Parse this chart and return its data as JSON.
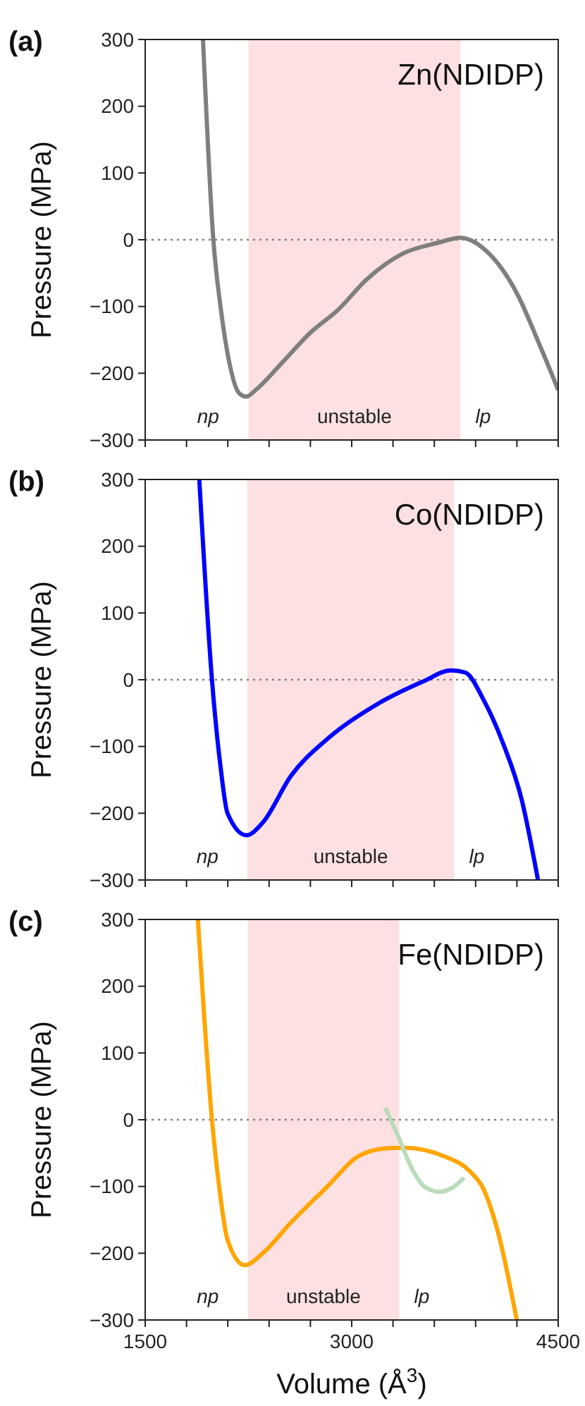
{
  "chart_data": [
    {
      "type": "line",
      "title": "(a)",
      "subtitle": "Zn(NDIDP)",
      "ylabel": "Pressure (MPa)",
      "xlim": [
        1500,
        4500
      ],
      "ylim": [
        -300,
        300
      ],
      "xticks": [
        1500,
        {
          "value": 1800,
          "label": null
        },
        {
          "value": 2100,
          "label": null
        },
        {
          "value": 2400,
          "label": null
        },
        {
          "value": 2700,
          "label": null
        },
        3000,
        {
          "value": 3300,
          "label": null
        },
        {
          "value": 3600,
          "label": null
        },
        {
          "value": 3900,
          "label": null
        },
        {
          "value": 4200,
          "label": null
        },
        4500
      ],
      "yticks": [
        -300,
        -200,
        -100,
        0,
        100,
        200,
        300
      ],
      "tick_labels": "y",
      "series": [
        {
          "color": "#7f7f7f",
          "x": [
            1920,
            1995,
            2047,
            2098,
            2183,
            2235,
            2303,
            2491,
            2696,
            2901,
            3106,
            3379,
            3618,
            3789,
            3994,
            4199,
            4370,
            4500
          ],
          "values": [
            300,
            0,
            -100,
            -170,
            -230,
            -235,
            -225,
            -185,
            -140,
            -105,
            -60,
            -20,
            -5,
            3,
            -20,
            -80,
            -160,
            -225
          ]
        }
      ],
      "bands": [
        {
          "axis": "x",
          "from": 2250,
          "to": 3790,
          "label": "unstable",
          "color": "#fde0e2"
        }
      ],
      "ref_lines": [
        {
          "axis": "y",
          "value": 0,
          "color": "#808080",
          "line_style": "dotted"
        }
      ],
      "annotations": [
        "np",
        "lp"
      ]
    },
    {
      "type": "line",
      "title": "(b)",
      "subtitle": "Co(NDIDP)",
      "ylabel": "Pressure (MPa)",
      "xlim": [
        1500,
        4500
      ],
      "ylim": [
        -300,
        300
      ],
      "xticks": [
        1500,
        {
          "value": 1800,
          "label": null
        },
        {
          "value": 2100,
          "label": null
        },
        {
          "value": 2400,
          "label": null
        },
        {
          "value": 2700,
          "label": null
        },
        3000,
        {
          "value": 3300,
          "label": null
        },
        {
          "value": 3600,
          "label": null
        },
        {
          "value": 3900,
          "label": null
        },
        {
          "value": 4200,
          "label": null
        },
        4500
      ],
      "yticks": [
        -300,
        -200,
        -100,
        0,
        100,
        200,
        300
      ],
      "tick_labels": "y",
      "series": [
        {
          "color": "#0000ff",
          "x": [
            1893,
            1985,
            2047,
            2098,
            2235,
            2354,
            2559,
            2833,
            3174,
            3515,
            3721,
            3823,
            3960,
            4097,
            4234,
            4353
          ],
          "values": [
            300,
            0,
            -130,
            -200,
            -233,
            -214,
            -144,
            -87,
            -38,
            -3,
            14,
            11,
            -31,
            -94,
            -179,
            -300
          ]
        }
      ],
      "bands": [
        {
          "axis": "x",
          "from": 2241,
          "to": 3745,
          "label": "unstable",
          "color": "#fde0e2"
        }
      ],
      "ref_lines": [
        {
          "axis": "y",
          "value": 0,
          "color": "#808080",
          "line_style": "dotted"
        }
      ],
      "annotations": [
        "np",
        "lp"
      ]
    },
    {
      "type": "line",
      "title": "(c)",
      "subtitle": "Fe(NDIDP)",
      "xlabel": "Volume (Å$^{3}$)",
      "ylabel": "Pressure (MPa)",
      "xlim": [
        1500,
        4500
      ],
      "ylim": [
        -300,
        300
      ],
      "xticks": [
        1500,
        {
          "value": 1800,
          "label": null
        },
        {
          "value": 2100,
          "label": null
        },
        {
          "value": 2400,
          "label": null
        },
        {
          "value": 2700,
          "label": null
        },
        3000,
        {
          "value": 3300,
          "label": null
        },
        {
          "value": 3600,
          "label": null
        },
        {
          "value": 3900,
          "label": null
        },
        {
          "value": 4200,
          "label": null
        },
        4500
      ],
      "yticks": [
        -300,
        -200,
        -100,
        0,
        100,
        200,
        300
      ],
      "series": [
        {
          "color": "#ffa500",
          "x": [
            1883,
            1985,
            2037,
            2098,
            2224,
            2354,
            2559,
            2833,
            3038,
            3243,
            3379,
            3686,
            3857,
            3960,
            4062,
            4199
          ],
          "values": [
            300,
            0,
            -100,
            -180,
            -218,
            -200,
            -154,
            -98,
            -56,
            -43,
            -42,
            -56,
            -77,
            -105,
            -168,
            -300
          ]
        },
        {
          "color": "#b9dcb9",
          "x": [
            3243,
            3328,
            3447,
            3533,
            3635,
            3737,
            3816
          ],
          "values": [
            18,
            -20,
            -77,
            -101,
            -108,
            -101,
            -87
          ]
        }
      ],
      "bands": [
        {
          "axis": "x",
          "from": 2245,
          "to": 3345,
          "label": "unstable",
          "color": "#fde0e2"
        }
      ],
      "ref_lines": [
        {
          "axis": "y",
          "value": 0,
          "color": "#808080",
          "line_style": "dotted"
        }
      ],
      "annotations": [
        "np",
        "lp"
      ]
    }
  ]
}
